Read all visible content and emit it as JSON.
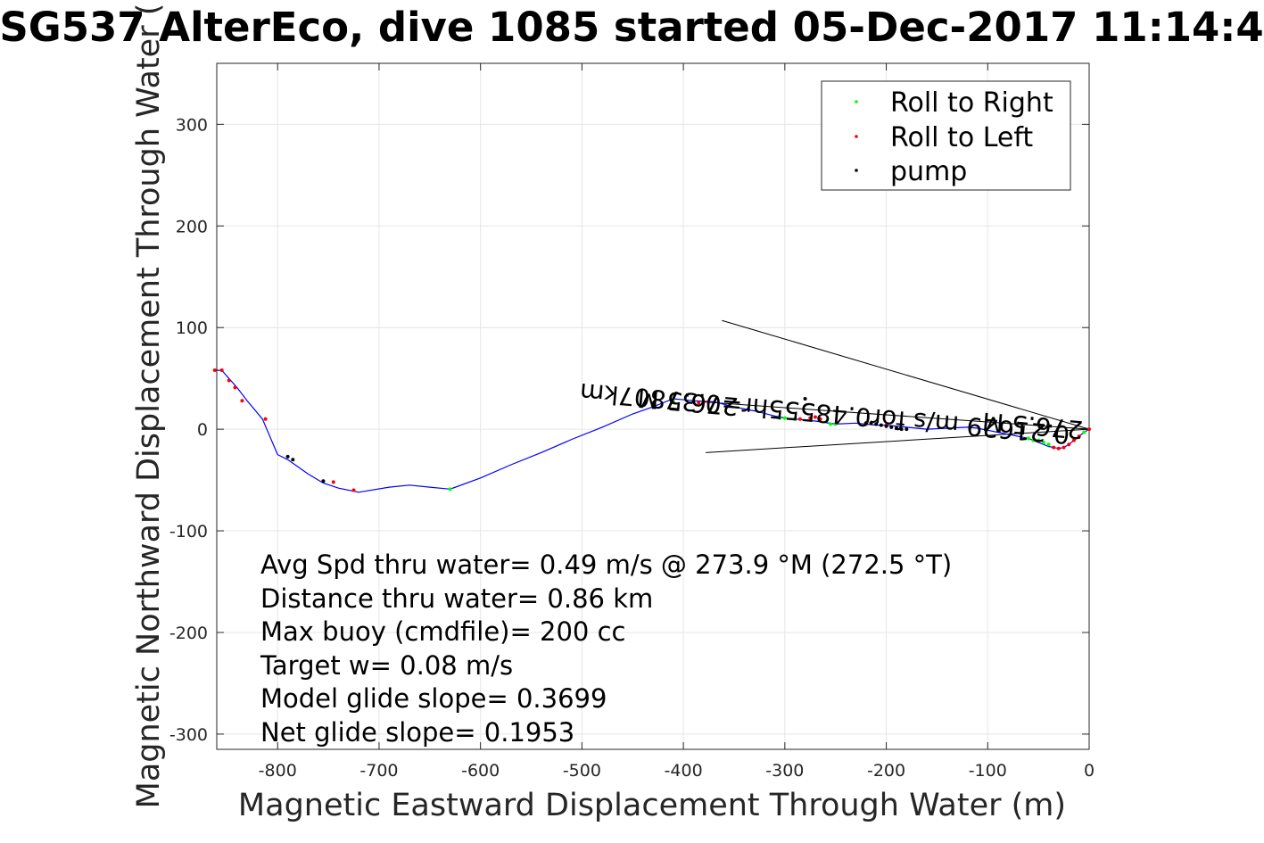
{
  "chart_data": {
    "type": "scatter",
    "title": "SG537 AlterEco, dive 1085 started 05-Dec-2017 11:14:4",
    "xlabel": "Magnetic Eastward Displacement Through Water (m)",
    "ylabel": "Magnetic Northward Displacement Through Water (",
    "xlim": [
      -860,
      0
    ],
    "ylim": [
      -315,
      360
    ],
    "xticks": [
      -800,
      -700,
      -600,
      -500,
      -400,
      -300,
      -200,
      -100,
      0
    ],
    "yticks": [
      -300,
      -200,
      -100,
      0,
      100,
      200,
      300
    ],
    "grid": true,
    "legend_position": "top-right",
    "legend": [
      {
        "name": "Roll to Right",
        "color": "#00ff00"
      },
      {
        "name": "Roll to Left",
        "color": "#ff0000"
      },
      {
        "name": "pump",
        "color": "#000000"
      }
    ],
    "track_color": "#0000ff",
    "track": {
      "x": [
        0,
        -5,
        -10,
        -15,
        -20,
        -25,
        -30,
        -35,
        -40,
        -45,
        -50,
        -55,
        -60,
        -65,
        -70,
        -80,
        -90,
        -100,
        -110,
        -120,
        -140,
        -160,
        -180,
        -200,
        -210,
        -230,
        -250,
        -270,
        -290,
        -300,
        -310,
        -330,
        -350,
        -370,
        -390,
        -410,
        -430,
        -450,
        -480,
        -510,
        -540,
        -570,
        -600,
        -630,
        -650,
        -670,
        -690,
        -720,
        -740,
        -755,
        -770,
        -790,
        -800,
        -815,
        -830,
        -840,
        -848,
        -855,
        -862
      ],
      "y": [
        0,
        -3,
        -7,
        -11,
        -15,
        -18,
        -19,
        -18,
        -17,
        -15,
        -13,
        -11,
        -9,
        -8,
        -7,
        -5,
        -3,
        -1,
        1,
        2,
        1,
        0,
        2,
        4,
        4,
        6,
        5,
        8,
        10,
        11,
        13,
        18,
        22,
        27,
        28,
        30,
        22,
        15,
        2,
        -10,
        -23,
        -35,
        -48,
        -59,
        -57,
        -55,
        -57,
        -62,
        -58,
        -53,
        -44,
        -30,
        -25,
        10,
        28,
        41,
        50,
        58,
        58
      ]
    },
    "roll_right": {
      "x": [
        -5,
        -40,
        -45,
        -50,
        -55,
        -60,
        -250,
        -255,
        -290,
        -300,
        -305,
        -410,
        -630
      ],
      "y": [
        -3,
        -15,
        -13,
        -11,
        -11,
        -9,
        5,
        5,
        10,
        11,
        11,
        27,
        -59
      ]
    },
    "roll_left": {
      "x": [
        0,
        -10,
        -15,
        -20,
        -25,
        -30,
        -35,
        -200,
        -220,
        -265,
        -270,
        -275,
        -285,
        -375,
        -380,
        -385,
        -725,
        -745,
        -812,
        -835,
        -842,
        -848,
        -855,
        -862
      ],
      "y": [
        0,
        -7,
        -11,
        -15,
        -18,
        -19,
        -18,
        4,
        5,
        10,
        12,
        11,
        10,
        27,
        27,
        26,
        -60,
        -52,
        10,
        28,
        41,
        48,
        58,
        58
      ]
    },
    "pump": {
      "x": [
        -180,
        -185,
        -190,
        -195,
        -200,
        -205,
        -210,
        -215,
        -220,
        -280,
        -390,
        -755,
        -785,
        -790
      ],
      "y": [
        0,
        0,
        1,
        2,
        3,
        4,
        5,
        6,
        6,
        30,
        27,
        -51,
        -30,
        -27
      ]
    },
    "annotations": [
      {
        "text": "276.5 M",
        "x": -55,
        "y": 12,
        "rotation": 185
      },
      {
        "text": "0.21629 m/s for0.48555hr=0.37807km",
        "x": -260,
        "y": 24,
        "rotation": 185
      },
      {
        "text": "276.5 M",
        "x": -395,
        "y": 35,
        "rotation": 185
      }
    ],
    "vector_lines": [
      {
        "x": [
          0,
          -362
        ],
        "y": [
          0,
          107
        ]
      },
      {
        "x": [
          0,
          -378
        ],
        "y": [
          0,
          -23
        ]
      },
      {
        "x": [
          0,
          -382
        ],
        "y": [
          0,
          27
        ]
      }
    ],
    "stats": [
      "Avg Spd thru water=  0.49 m/s @ 273.9 °M (272.5 °T)",
      "Distance thru water=  0.86 km",
      "Max buoy (cmdfile)= 200 cc",
      "Target w= 0.08 m/s",
      "Model glide slope= 0.3699",
      "Net glide slope= 0.1953"
    ]
  }
}
